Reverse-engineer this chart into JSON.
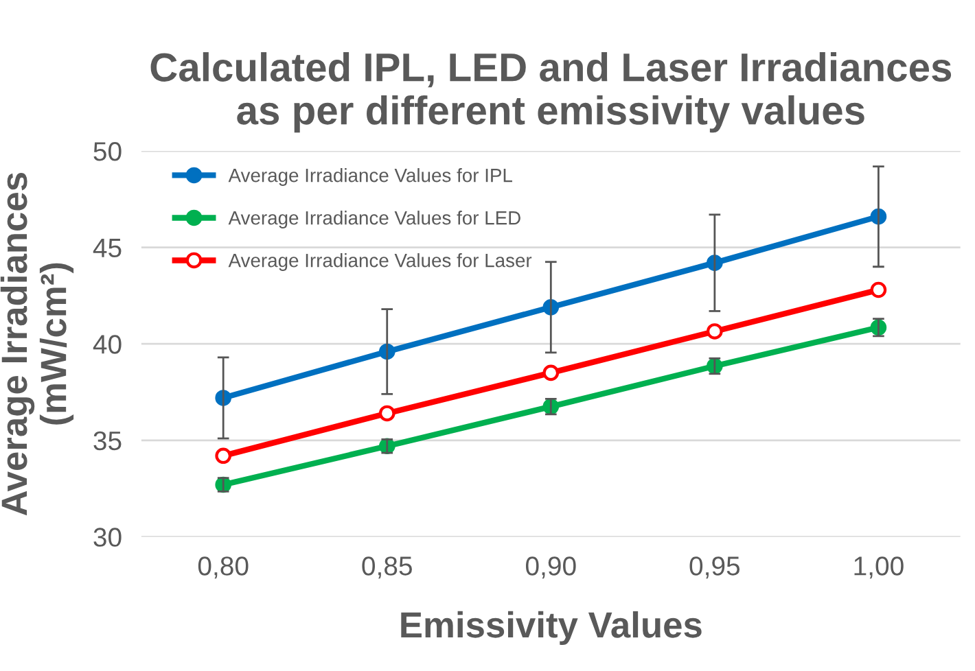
{
  "chart_data": {
    "type": "line",
    "title": "Calculated IPL, LED and Laser Irradiances\nas per different emissivity values",
    "xlabel": "Emissivity Values",
    "ylabel": "Average Irradiances\n(mW/cm²)",
    "categories": [
      "0,80",
      "0,85",
      "0,90",
      "0,95",
      "1,00"
    ],
    "ylim": [
      30,
      50
    ],
    "yticks": [
      30,
      35,
      40,
      45,
      50
    ],
    "grid": "y",
    "legend": "top left",
    "line_style": "solid",
    "series": [
      {
        "name": "Average Irradiance Values for IPL",
        "color": "#0070c0",
        "marker": "circle",
        "values": [
          37.2,
          39.6,
          41.9,
          44.2,
          46.6
        ],
        "errors": [
          2.1,
          2.2,
          2.35,
          2.5,
          2.6
        ]
      },
      {
        "name": "Average Irradiance Values for LED",
        "color": "#00b050",
        "marker": "circle",
        "values": [
          32.7,
          34.7,
          36.75,
          38.85,
          40.85
        ],
        "errors": [
          0.35,
          0.35,
          0.4,
          0.4,
          0.45
        ]
      },
      {
        "name": "Average Irradiance Values for Laser",
        "color": "#ff0000",
        "marker": "open circle",
        "values": [
          34.2,
          36.4,
          38.5,
          40.65,
          42.8
        ]
      }
    ]
  }
}
